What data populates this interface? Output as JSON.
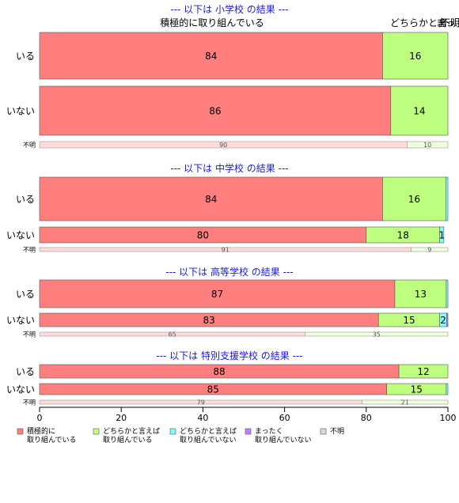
{
  "chart_data": {
    "type": "bar",
    "orientation": "horizontal",
    "stacked": true,
    "xlim": [
      0,
      100
    ],
    "x_ticks": [
      0,
      20,
      40,
      60,
      80,
      100
    ],
    "top_labels": {
      "left": "積極的に取り組んでいる",
      "right": "どちらかと言…",
      "right2": "まっ…",
      "right3": "不明"
    },
    "series": [
      {
        "name": "積極的に\n取り組んでいる",
        "color": "#ff7f7f"
      },
      {
        "name": "どちらかと言えば\n取り組んでいる",
        "color": "#bfff7f"
      },
      {
        "name": "どちらかと言えば\n取り組んでいない",
        "color": "#7fffff"
      },
      {
        "name": "まったく\n取り組んでいない",
        "color": "#bf7fff"
      },
      {
        "name": "不明",
        "color": "#d9d9d9"
      }
    ],
    "groups": [
      {
        "title": "--- 以下は 小学校 の結果 ---",
        "rows": [
          {
            "label": "いる",
            "values": [
              84,
              16,
              0,
              0,
              0
            ],
            "labels": [
              "84",
              "16",
              "",
              "",
              ""
            ]
          },
          {
            "label": "いない",
            "values": [
              86,
              14,
              0,
              0,
              0
            ],
            "labels": [
              "86",
              "14",
              "",
              "",
              ""
            ]
          },
          {
            "label": "不明",
            "values": [
              90,
              10,
              0,
              0,
              0
            ],
            "labels": [
              "90",
              "10",
              "",
              "",
              ""
            ],
            "pale": true
          }
        ]
      },
      {
        "title": "--- 以下は 中学校 の結果 ---",
        "rows": [
          {
            "label": "いる",
            "values": [
              84,
              15.5,
              0.5,
              0,
              0
            ],
            "labels": [
              "84",
              "16",
              "",
              "",
              ""
            ]
          },
          {
            "label": "いない",
            "values": [
              80,
              18,
              1,
              0,
              0
            ],
            "labels": [
              "80",
              "18",
              "1",
              "",
              ""
            ]
          },
          {
            "label": "不明",
            "values": [
              91,
              9,
              0,
              0,
              0
            ],
            "labels": [
              "91",
              "9",
              "",
              "",
              ""
            ],
            "pale": true
          }
        ]
      },
      {
        "title": "--- 以下は 高等学校 の結果 ---",
        "rows": [
          {
            "label": "いる",
            "values": [
              87,
              12.6,
              0.4,
              0,
              0
            ],
            "labels": [
              "87",
              "13",
              "",
              "",
              ""
            ]
          },
          {
            "label": "いない",
            "values": [
              83,
              15,
              1.7,
              0.3,
              0
            ],
            "labels": [
              "83",
              "15",
              "2",
              "",
              ""
            ]
          },
          {
            "label": "不明",
            "values": [
              65,
              35,
              0,
              0,
              0
            ],
            "labels": [
              "65",
              "35",
              "",
              "",
              ""
            ],
            "pale": true
          }
        ]
      },
      {
        "title": "--- 以下は 特別支援学校 の結果 ---",
        "rows": [
          {
            "label": "いる",
            "values": [
              88,
              12,
              0,
              0,
              0
            ],
            "labels": [
              "88",
              "12",
              "",
              "",
              ""
            ]
          },
          {
            "label": "いない",
            "values": [
              85,
              14.6,
              0.4,
              0,
              0
            ],
            "labels": [
              "85",
              "15",
              "",
              "",
              ""
            ]
          },
          {
            "label": "不明",
            "values": [
              79,
              21,
              0,
              0,
              0
            ],
            "labels": [
              "79",
              "21",
              "",
              "",
              ""
            ],
            "pale": true
          }
        ]
      }
    ]
  }
}
